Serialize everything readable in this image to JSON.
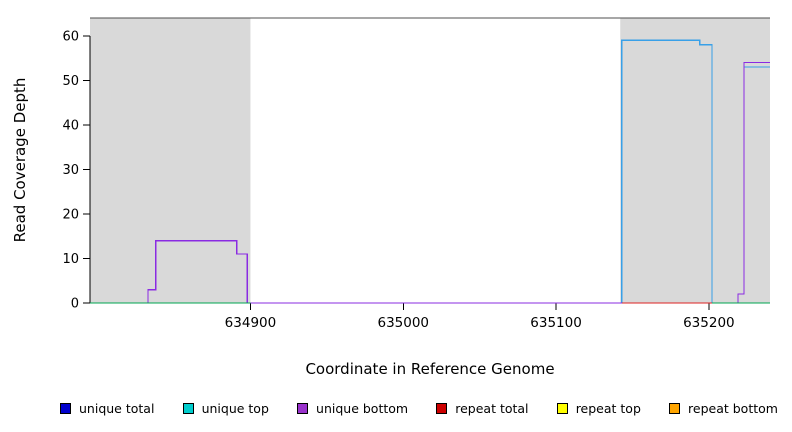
{
  "chart_data": {
    "type": "line",
    "title": "",
    "xlabel": "Coordinate in Reference Genome",
    "ylabel": "Read Coverage Depth",
    "xlim": [
      634795,
      635240
    ],
    "ylim": [
      0,
      64
    ],
    "xticks": [
      "634900",
      "635000",
      "635100",
      "635200"
    ],
    "xtick_values": [
      634900,
      635000,
      635100,
      635200
    ],
    "yticks": [
      "0",
      "10",
      "20",
      "30",
      "40",
      "50",
      "60"
    ],
    "ytick_values": [
      0,
      10,
      20,
      30,
      40,
      50,
      60
    ],
    "grid": false,
    "frame_color": "#4f4f4f",
    "shaded_regions": [
      {
        "x0": 634795,
        "x1": 634900,
        "color": "#d9d9d9"
      },
      {
        "x0": 635142,
        "x1": 635240,
        "color": "#d9d9d9"
      }
    ],
    "series": [
      {
        "name": "unique top",
        "color": "#38a0e8",
        "segments": [
          [
            [
              635143,
              0
            ],
            [
              635143,
              59
            ],
            [
              635194,
              59
            ],
            [
              635194,
              58
            ],
            [
              635202,
              58
            ],
            [
              635202,
              0
            ]
          ],
          [
            [
              635223,
              53
            ],
            [
              635240,
              53
            ]
          ]
        ]
      },
      {
        "name": "unique bottom",
        "color": "#8a2be2",
        "segments": [
          [
            [
              634795,
              0
            ],
            [
              634833,
              0
            ],
            [
              634833,
              3
            ],
            [
              634838,
              3
            ],
            [
              634838,
              14
            ],
            [
              634891,
              14
            ],
            [
              634891,
              11
            ],
            [
              634898,
              11
            ],
            [
              634898,
              0
            ],
            [
              635219,
              0
            ],
            [
              635219,
              2
            ],
            [
              635223,
              2
            ],
            [
              635223,
              54
            ],
            [
              635240,
              54
            ]
          ]
        ]
      },
      {
        "name": "baseline (green)",
        "color": "#00a550",
        "segments": [
          [
            [
              634795,
              0
            ],
            [
              634900,
              0
            ]
          ],
          [
            [
              635202,
              0
            ],
            [
              635240,
              0
            ]
          ]
        ]
      },
      {
        "name": "repeat total",
        "color": "#dd2222",
        "segments": [
          [
            [
              635143,
              0
            ],
            [
              635202,
              0
            ]
          ]
        ]
      }
    ],
    "legend": [
      {
        "label": "unique total",
        "color": "#0000cd"
      },
      {
        "label": "unique top",
        "color": "#00cdcd"
      },
      {
        "label": "unique bottom",
        "color": "#9932cc"
      },
      {
        "label": "repeat total",
        "color": "#cd0000"
      },
      {
        "label": "repeat top",
        "color": "#ffff00"
      },
      {
        "label": "repeat bottom",
        "color": "#ffa500"
      }
    ],
    "legend_position": "bottom"
  }
}
